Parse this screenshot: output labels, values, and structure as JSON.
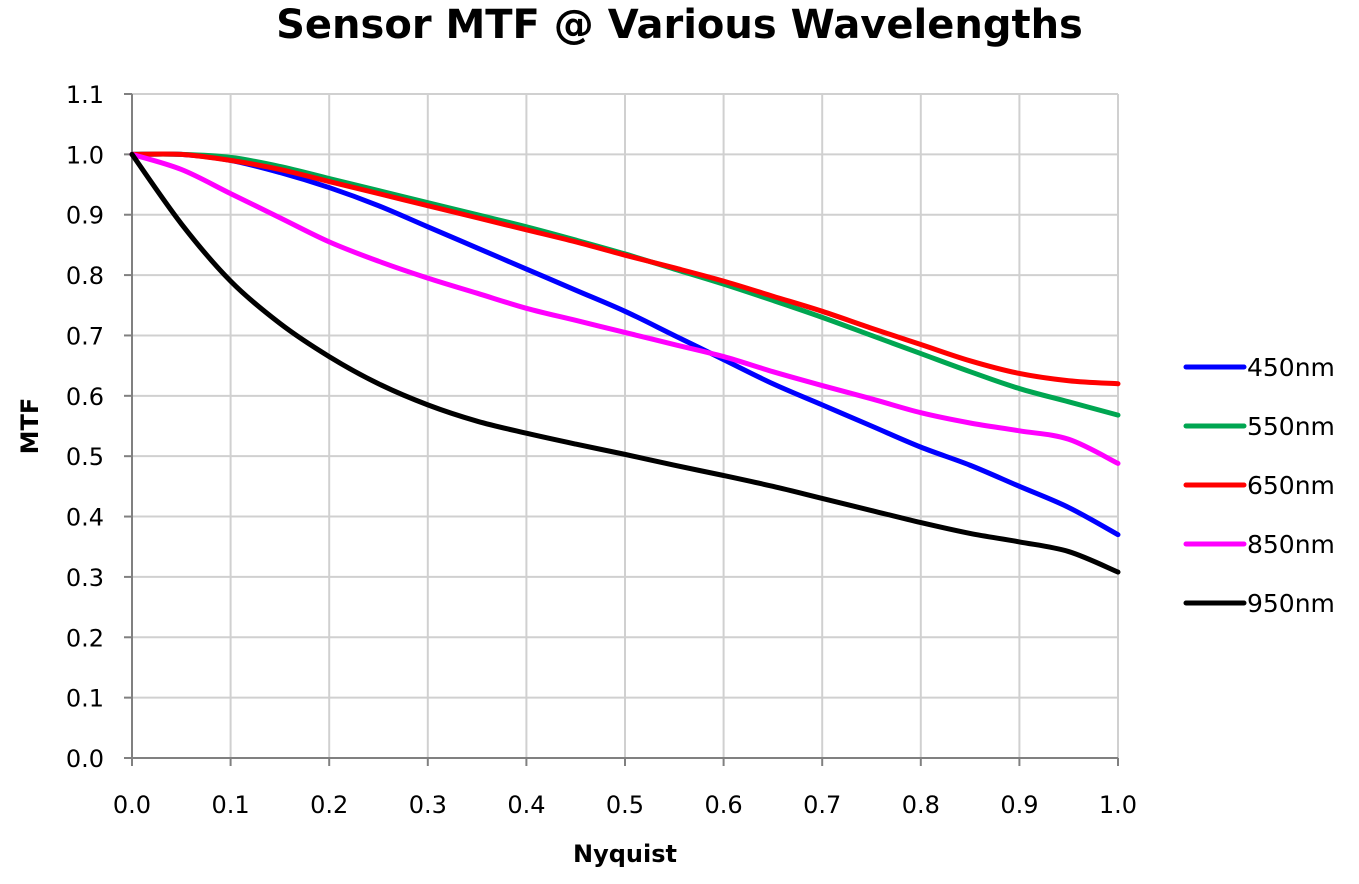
{
  "chart_data": {
    "type": "line",
    "title": "Sensor MTF @ Various Wavelengths",
    "xlabel": "Nyquist",
    "ylabel": "MTF",
    "xlim": [
      0.0,
      1.0
    ],
    "ylim": [
      0.0,
      1.1
    ],
    "xticks": [
      "0.0",
      "0.1",
      "0.2",
      "0.3",
      "0.4",
      "0.5",
      "0.6",
      "0.7",
      "0.8",
      "0.9",
      "1.0"
    ],
    "yticks": [
      "0.0",
      "0.1",
      "0.2",
      "0.3",
      "0.4",
      "0.5",
      "0.6",
      "0.7",
      "0.8",
      "0.9",
      "1.0",
      "1.1"
    ],
    "grid": true,
    "legend_position": "right",
    "x": [
      0.0,
      0.05,
      0.1,
      0.15,
      0.2,
      0.25,
      0.3,
      0.35,
      0.4,
      0.45,
      0.5,
      0.55,
      0.6,
      0.65,
      0.7,
      0.75,
      0.8,
      0.85,
      0.9,
      0.95,
      1.0
    ],
    "series": [
      {
        "name": "450nm",
        "color": "#0000ff",
        "values": [
          1.0,
          1.0,
          0.99,
          0.97,
          0.945,
          0.915,
          0.88,
          0.845,
          0.81,
          0.775,
          0.74,
          0.7,
          0.66,
          0.62,
          0.585,
          0.55,
          0.515,
          0.485,
          0.45,
          0.415,
          0.37
        ]
      },
      {
        "name": "550nm",
        "color": "#00a651",
        "values": [
          1.0,
          1.0,
          0.995,
          0.98,
          0.96,
          0.94,
          0.92,
          0.9,
          0.88,
          0.858,
          0.835,
          0.81,
          0.785,
          0.758,
          0.73,
          0.7,
          0.67,
          0.64,
          0.612,
          0.59,
          0.568
        ]
      },
      {
        "name": "650nm",
        "color": "#ff0000",
        "values": [
          1.0,
          1.0,
          0.99,
          0.975,
          0.955,
          0.935,
          0.915,
          0.895,
          0.875,
          0.855,
          0.833,
          0.812,
          0.79,
          0.765,
          0.74,
          0.712,
          0.685,
          0.658,
          0.637,
          0.625,
          0.62
        ]
      },
      {
        "name": "850nm",
        "color": "#ff00ff",
        "values": [
          1.0,
          0.975,
          0.935,
          0.895,
          0.855,
          0.823,
          0.795,
          0.77,
          0.745,
          0.725,
          0.705,
          0.685,
          0.665,
          0.64,
          0.617,
          0.595,
          0.572,
          0.555,
          0.542,
          0.528,
          0.488
        ]
      },
      {
        "name": "950nm",
        "color": "#000000",
        "values": [
          1.0,
          0.885,
          0.79,
          0.72,
          0.665,
          0.62,
          0.585,
          0.558,
          0.538,
          0.52,
          0.503,
          0.485,
          0.468,
          0.45,
          0.43,
          0.41,
          0.39,
          0.372,
          0.358,
          0.342,
          0.308
        ]
      }
    ]
  }
}
